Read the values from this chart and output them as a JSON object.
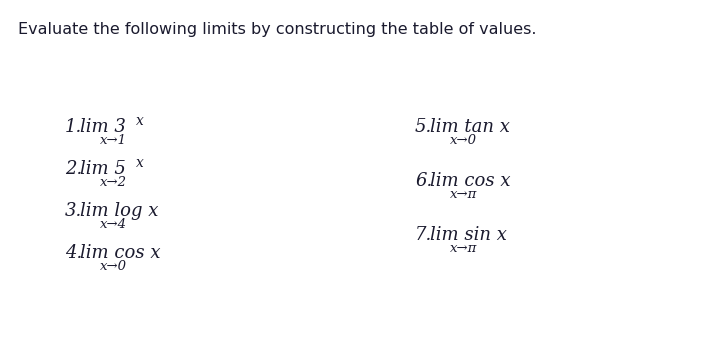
{
  "title": "Evaluate the following limits by constructing the table of values.",
  "background_color": "#ffffff",
  "text_color": "#1a1a2e",
  "items_left": [
    {
      "number": "1.",
      "main": "lim 3",
      "sup": "x",
      "sub": "x→1"
    },
    {
      "number": "2.",
      "main": "lim 5",
      "sup": "x",
      "sub": "x→2"
    },
    {
      "number": "3.",
      "main": "lim log x",
      "sup": "",
      "sub": "x→4"
    },
    {
      "number": "4.",
      "main": "lim cos x",
      "sup": "",
      "sub": "x→0"
    }
  ],
  "items_right": [
    {
      "number": "5.",
      "main": "lim tan x",
      "sup": "",
      "sub": "x→0"
    },
    {
      "number": "6.",
      "main": "lim cos x",
      "sup": "",
      "sub": "x→π"
    },
    {
      "number": "7.",
      "main": "lim sin x",
      "sup": "",
      "sub": "x→π"
    }
  ],
  "title_fontsize": 11.5,
  "main_fontsize": 13.0,
  "sub_fontsize": 9.5,
  "number_fontsize": 13.0
}
